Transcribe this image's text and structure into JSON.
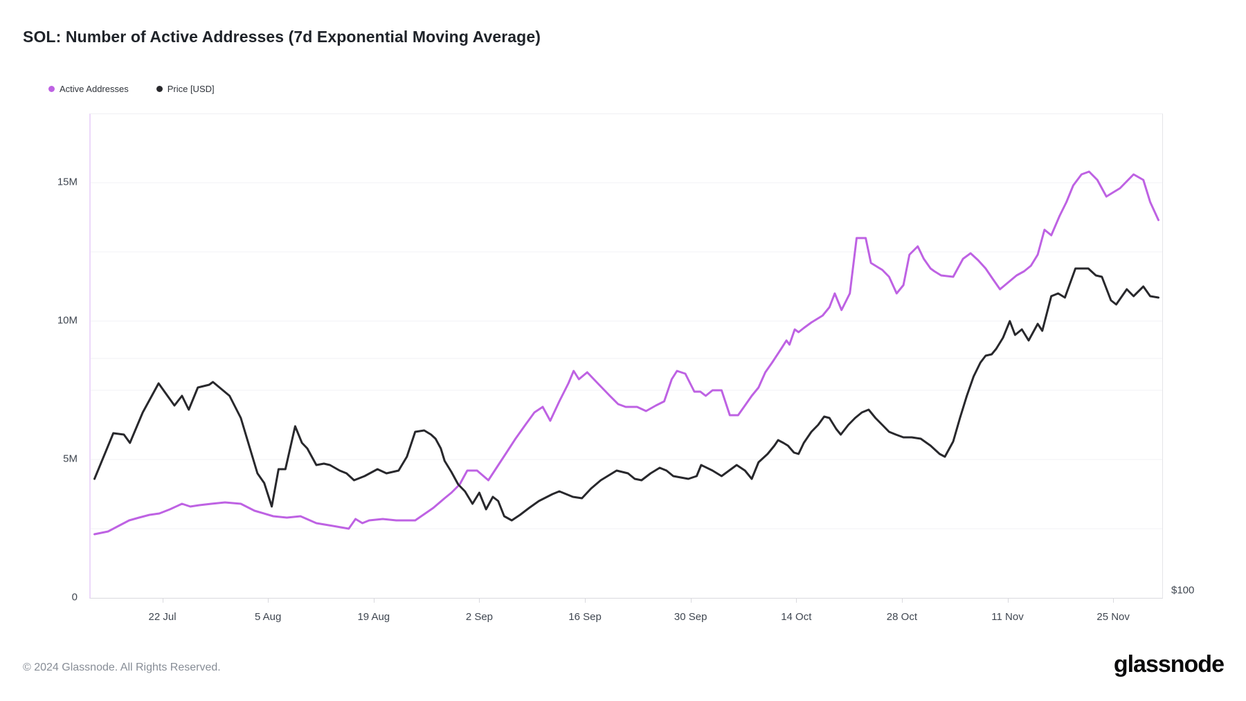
{
  "title": "SOL: Number of Active Addresses (7d Exponential Moving Average)",
  "legend": {
    "items": [
      {
        "id": "active-addresses",
        "label": "Active Addresses",
        "color": "#be62e3"
      },
      {
        "id": "price",
        "label": "Price [USD]",
        "color": "#28282c"
      }
    ]
  },
  "footer": {
    "copyright": "© 2024 Glassnode. All Rights Reserved.",
    "logo_text": "glassnode"
  },
  "chart_data": {
    "type": "line",
    "title": "SOL: Number of Active Addresses (7d Exponential Moving Average)",
    "x_domain_note": "x values are day offsets from 13 Jul 2024; visible plot spans ~12 Jul to ~1 Dec 2024",
    "x_days_total": 142,
    "x_day_offset": 0.5,
    "y_axis_left": {
      "unit": "active addresses (millions)",
      "max": 17.475,
      "ticks": [
        {
          "v": 15,
          "label": "15M"
        },
        {
          "v": 10,
          "label": "10M"
        },
        {
          "v": 5,
          "label": "5M"
        },
        {
          "v": 0,
          "label": "0"
        }
      ]
    },
    "y_axis_right": {
      "ticks": [
        {
          "v": 0,
          "label": "$100"
        }
      ]
    },
    "x_axis": {
      "ticks": [
        {
          "d": 9,
          "label": "22 Jul"
        },
        {
          "d": 23,
          "label": "5 Aug"
        },
        {
          "d": 37,
          "label": "19 Aug"
        },
        {
          "d": 51,
          "label": "2 Sep"
        },
        {
          "d": 65,
          "label": "16 Sep"
        },
        {
          "d": 79,
          "label": "30 Sep"
        },
        {
          "d": 93,
          "label": "14 Oct"
        },
        {
          "d": 107,
          "label": "28 Oct"
        },
        {
          "d": 121,
          "label": "11 Nov"
        },
        {
          "d": 135,
          "label": "25 Nov"
        }
      ]
    },
    "gridlines_m": [
      2.5,
      5,
      7.5,
      10,
      12.5,
      15
    ],
    "extra_gridlines_m": [
      8.65
    ],
    "colors": {
      "gridline": "#f1f1f4"
    },
    "series": [
      {
        "id": "active-addresses",
        "name": "Active Addresses",
        "color": "#be62e3",
        "stroke_width": 3,
        "unit": "millions of addresses (left axis)",
        "points": [
          [
            0,
            2.3
          ],
          [
            1.8,
            2.4
          ],
          [
            3.2,
            2.6
          ],
          [
            4.6,
            2.8
          ],
          [
            5.9,
            2.9
          ],
          [
            7.3,
            3.0
          ],
          [
            8.6,
            3.05
          ],
          [
            10,
            3.2
          ],
          [
            11.6,
            3.4
          ],
          [
            12.7,
            3.3
          ],
          [
            13.9,
            3.35
          ],
          [
            15.5,
            3.4
          ],
          [
            17.3,
            3.45
          ],
          [
            19.4,
            3.4
          ],
          [
            21.2,
            3.15
          ],
          [
            23.7,
            2.95
          ],
          [
            25.5,
            2.9
          ],
          [
            27.3,
            2.95
          ],
          [
            29.4,
            2.7
          ],
          [
            31.6,
            2.6
          ],
          [
            33.7,
            2.5
          ],
          [
            34.6,
            2.85
          ],
          [
            35.5,
            2.7
          ],
          [
            36.4,
            2.8
          ],
          [
            38.2,
            2.85
          ],
          [
            40,
            2.8
          ],
          [
            42.5,
            2.8
          ],
          [
            44.9,
            3.25
          ],
          [
            46.4,
            3.6
          ],
          [
            47.3,
            3.8
          ],
          [
            48.4,
            4.1
          ],
          [
            49.4,
            4.6
          ],
          [
            50.7,
            4.6
          ],
          [
            52.2,
            4.25
          ],
          [
            53.4,
            4.75
          ],
          [
            54.6,
            5.25
          ],
          [
            55.8,
            5.75
          ],
          [
            57.1,
            6.25
          ],
          [
            58.3,
            6.7
          ],
          [
            59.4,
            6.9
          ],
          [
            60.4,
            6.4
          ],
          [
            61.6,
            7.1
          ],
          [
            62.8,
            7.75
          ],
          [
            63.5,
            8.2
          ],
          [
            64.2,
            7.9
          ],
          [
            65.3,
            8.15
          ],
          [
            66.7,
            7.75
          ],
          [
            68.3,
            7.3
          ],
          [
            69.4,
            7.0
          ],
          [
            70.4,
            6.9
          ],
          [
            71.9,
            6.9
          ],
          [
            73.1,
            6.75
          ],
          [
            74.4,
            6.95
          ],
          [
            75.5,
            7.1
          ],
          [
            76.5,
            7.9
          ],
          [
            77.2,
            8.2
          ],
          [
            78.3,
            8.1
          ],
          [
            79.5,
            7.45
          ],
          [
            80.3,
            7.45
          ],
          [
            81,
            7.3
          ],
          [
            81.9,
            7.5
          ],
          [
            83.1,
            7.5
          ],
          [
            84.2,
            6.6
          ],
          [
            85.3,
            6.6
          ],
          [
            86.2,
            6.95
          ],
          [
            87.1,
            7.3
          ],
          [
            88,
            7.6
          ],
          [
            88.9,
            8.15
          ],
          [
            89.8,
            8.5
          ],
          [
            91,
            9.0
          ],
          [
            91.7,
            9.3
          ],
          [
            92.1,
            9.15
          ],
          [
            92.8,
            9.7
          ],
          [
            93.3,
            9.6
          ],
          [
            94,
            9.75
          ],
          [
            95,
            9.95
          ],
          [
            96.5,
            10.2
          ],
          [
            97.4,
            10.5
          ],
          [
            98.1,
            11.0
          ],
          [
            99,
            10.4
          ],
          [
            100.1,
            11.0
          ],
          [
            101,
            13.0
          ],
          [
            102.2,
            13.0
          ],
          [
            102.9,
            12.1
          ],
          [
            103.5,
            12.0
          ],
          [
            104.4,
            11.85
          ],
          [
            105.3,
            11.6
          ],
          [
            106.3,
            11.0
          ],
          [
            107.2,
            11.3
          ],
          [
            108,
            12.4
          ],
          [
            109.1,
            12.7
          ],
          [
            109.9,
            12.25
          ],
          [
            110.8,
            11.9
          ],
          [
            111.3,
            11.8
          ],
          [
            112.2,
            11.65
          ],
          [
            113.8,
            11.6
          ],
          [
            115.1,
            12.25
          ],
          [
            116.1,
            12.45
          ],
          [
            117.1,
            12.2
          ],
          [
            118.1,
            11.9
          ],
          [
            119.1,
            11.5
          ],
          [
            120,
            11.15
          ],
          [
            121.1,
            11.4
          ],
          [
            122.2,
            11.65
          ],
          [
            123.2,
            11.8
          ],
          [
            124.1,
            12.0
          ],
          [
            125,
            12.4
          ],
          [
            125.9,
            13.3
          ],
          [
            126.8,
            13.1
          ],
          [
            127.9,
            13.8
          ],
          [
            128.8,
            14.3
          ],
          [
            129.7,
            14.9
          ],
          [
            130.8,
            15.3
          ],
          [
            131.8,
            15.4
          ],
          [
            132.9,
            15.1
          ],
          [
            134.1,
            14.5
          ],
          [
            135,
            14.65
          ],
          [
            135.9,
            14.8
          ],
          [
            137.7,
            15.3
          ],
          [
            139,
            15.1
          ],
          [
            139.9,
            14.3
          ],
          [
            141,
            13.65
          ]
        ]
      },
      {
        "id": "price",
        "name": "Price [USD]",
        "color": "#28282c",
        "stroke_width": 3,
        "unit": "USD (right axis, only $100 tick visible); values stored in left-axis-equivalent millions as drawn",
        "points": [
          [
            0,
            4.3
          ],
          [
            2.5,
            5.95
          ],
          [
            3.9,
            5.9
          ],
          [
            4.7,
            5.6
          ],
          [
            6.4,
            6.7
          ],
          [
            8.5,
            7.75
          ],
          [
            10.6,
            6.95
          ],
          [
            11.6,
            7.3
          ],
          [
            12.5,
            6.8
          ],
          [
            13.7,
            7.6
          ],
          [
            15.2,
            7.7
          ],
          [
            15.7,
            7.8
          ],
          [
            17.9,
            7.3
          ],
          [
            19.4,
            6.5
          ],
          [
            21.6,
            4.5
          ],
          [
            22.5,
            4.15
          ],
          [
            23.5,
            3.3
          ],
          [
            24.4,
            4.65
          ],
          [
            25.3,
            4.65
          ],
          [
            26.6,
            6.2
          ],
          [
            27.5,
            5.6
          ],
          [
            28.2,
            5.4
          ],
          [
            29.4,
            4.8
          ],
          [
            30.4,
            4.85
          ],
          [
            31.2,
            4.8
          ],
          [
            32.5,
            4.6
          ],
          [
            33.4,
            4.5
          ],
          [
            34.4,
            4.25
          ],
          [
            35.8,
            4.4
          ],
          [
            37.5,
            4.65
          ],
          [
            38.7,
            4.5
          ],
          [
            40.3,
            4.6
          ],
          [
            41.4,
            5.1
          ],
          [
            42.5,
            6.0
          ],
          [
            43.7,
            6.05
          ],
          [
            44.6,
            5.9
          ],
          [
            45.2,
            5.75
          ],
          [
            45.9,
            5.4
          ],
          [
            46.4,
            4.95
          ],
          [
            47.3,
            4.55
          ],
          [
            48.2,
            4.1
          ],
          [
            49.1,
            3.85
          ],
          [
            50.1,
            3.4
          ],
          [
            51,
            3.8
          ],
          [
            51.9,
            3.2
          ],
          [
            52.8,
            3.65
          ],
          [
            53.5,
            3.5
          ],
          [
            54.3,
            2.95
          ],
          [
            55.3,
            2.8
          ],
          [
            56.4,
            3.0
          ],
          [
            57.6,
            3.25
          ],
          [
            58.9,
            3.5
          ],
          [
            60.7,
            3.75
          ],
          [
            61.6,
            3.85
          ],
          [
            63.4,
            3.65
          ],
          [
            64.6,
            3.6
          ],
          [
            65.8,
            3.95
          ],
          [
            67.1,
            4.25
          ],
          [
            69.2,
            4.6
          ],
          [
            70.7,
            4.5
          ],
          [
            71.6,
            4.3
          ],
          [
            72.5,
            4.25
          ],
          [
            73.7,
            4.5
          ],
          [
            74.9,
            4.7
          ],
          [
            75.8,
            4.6
          ],
          [
            76.7,
            4.4
          ],
          [
            78.7,
            4.3
          ],
          [
            79.8,
            4.4
          ],
          [
            80.4,
            4.8
          ],
          [
            81.9,
            4.6
          ],
          [
            83.1,
            4.4
          ],
          [
            85.1,
            4.8
          ],
          [
            86.2,
            4.6
          ],
          [
            87.1,
            4.3
          ],
          [
            88,
            4.9
          ],
          [
            89.2,
            5.2
          ],
          [
            90.1,
            5.5
          ],
          [
            90.6,
            5.7
          ],
          [
            91.3,
            5.6
          ],
          [
            91.9,
            5.5
          ],
          [
            92.7,
            5.25
          ],
          [
            93.3,
            5.2
          ],
          [
            94,
            5.6
          ],
          [
            95,
            6.0
          ],
          [
            95.9,
            6.25
          ],
          [
            96.7,
            6.55
          ],
          [
            97.4,
            6.5
          ],
          [
            98.3,
            6.1
          ],
          [
            98.9,
            5.9
          ],
          [
            99.9,
            6.25
          ],
          [
            100.8,
            6.5
          ],
          [
            101.7,
            6.7
          ],
          [
            102.6,
            6.8
          ],
          [
            103.5,
            6.5
          ],
          [
            104.4,
            6.25
          ],
          [
            105.3,
            6.0
          ],
          [
            106.2,
            5.9
          ],
          [
            107.2,
            5.8
          ],
          [
            108.3,
            5.8
          ],
          [
            109.5,
            5.75
          ],
          [
            110.8,
            5.5
          ],
          [
            112,
            5.2
          ],
          [
            112.7,
            5.1
          ],
          [
            113.8,
            5.65
          ],
          [
            114.7,
            6.5
          ],
          [
            115.6,
            7.3
          ],
          [
            116.5,
            8.0
          ],
          [
            117.4,
            8.5
          ],
          [
            118.1,
            8.75
          ],
          [
            118.9,
            8.8
          ],
          [
            119.5,
            9.0
          ],
          [
            120.4,
            9.4
          ],
          [
            121.3,
            10.0
          ],
          [
            122,
            9.5
          ],
          [
            122.9,
            9.7
          ],
          [
            123.8,
            9.3
          ],
          [
            125,
            9.9
          ],
          [
            125.6,
            9.65
          ],
          [
            126.8,
            10.9
          ],
          [
            127.7,
            11.0
          ],
          [
            128.6,
            10.85
          ],
          [
            130,
            11.9
          ],
          [
            131.7,
            11.9
          ],
          [
            132.7,
            11.65
          ],
          [
            133.5,
            11.6
          ],
          [
            134.7,
            10.75
          ],
          [
            135.4,
            10.6
          ],
          [
            136.8,
            11.15
          ],
          [
            137.7,
            10.9
          ],
          [
            139,
            11.25
          ],
          [
            139.9,
            10.9
          ],
          [
            141,
            10.85
          ]
        ]
      }
    ]
  }
}
